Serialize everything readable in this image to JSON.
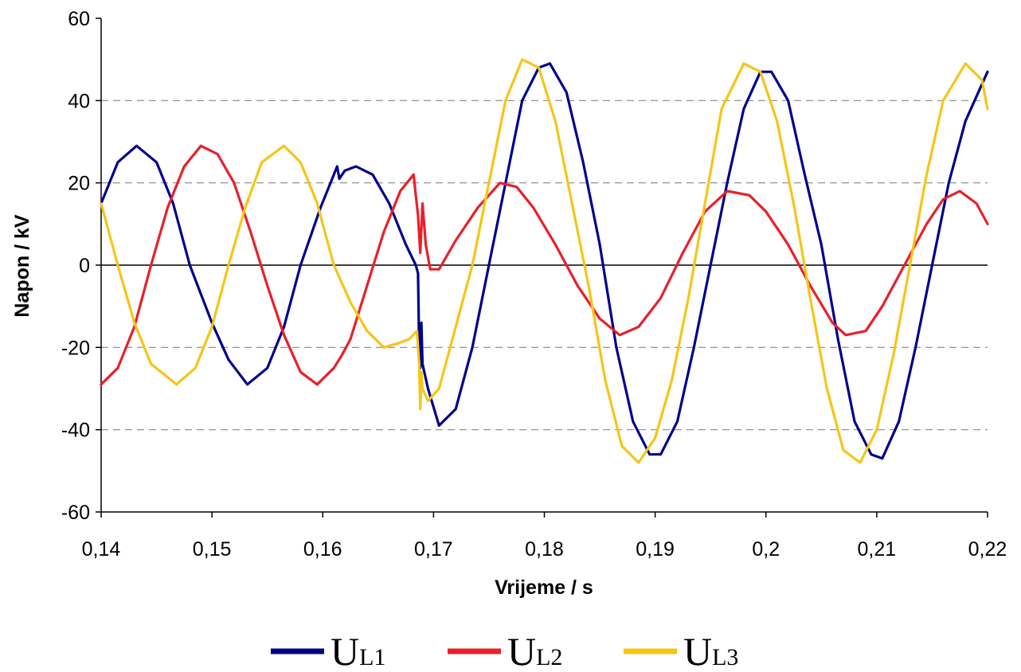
{
  "chart_data": {
    "type": "line",
    "title": "",
    "xlabel": "Vrijeme / s",
    "ylabel": "Napon / kV",
    "xlim": [
      0.14,
      0.22
    ],
    "ylim": [
      -60,
      60
    ],
    "x_ticks": [
      0.14,
      0.15,
      0.16,
      0.17,
      0.18,
      0.19,
      0.2,
      0.21,
      0.22
    ],
    "x_tick_labels": [
      "0,14",
      "0,15",
      "0,16",
      "0,17",
      "0,18",
      "0,19",
      "0,2",
      "0,21",
      "0,22"
    ],
    "y_ticks": [
      -60,
      -40,
      -20,
      0,
      20,
      40,
      60
    ],
    "y_tick_labels": [
      "-60",
      "-40",
      "-20",
      "0",
      "20",
      "40",
      "60"
    ],
    "grid": "horizontal dashed",
    "legend": "bottom",
    "series": [
      {
        "name": "U",
        "name_sub": "L1",
        "color": "#00008B",
        "points": [
          [
            0.14,
            15
          ],
          [
            0.1415,
            25
          ],
          [
            0.1432,
            29
          ],
          [
            0.145,
            25
          ],
          [
            0.1465,
            15
          ],
          [
            0.148,
            0
          ],
          [
            0.15,
            -14
          ],
          [
            0.1515,
            -23
          ],
          [
            0.1532,
            -29
          ],
          [
            0.155,
            -25
          ],
          [
            0.1565,
            -15
          ],
          [
            0.158,
            0
          ],
          [
            0.1598,
            14
          ],
          [
            0.161,
            22
          ],
          [
            0.1613,
            24
          ],
          [
            0.1615,
            21
          ],
          [
            0.162,
            23
          ],
          [
            0.163,
            24
          ],
          [
            0.1645,
            22
          ],
          [
            0.166,
            15
          ],
          [
            0.1675,
            5
          ],
          [
            0.1684,
            0
          ],
          [
            0.1686,
            -2
          ],
          [
            0.1687,
            -20
          ],
          [
            0.1688,
            -25
          ],
          [
            0.1689,
            -14
          ],
          [
            0.169,
            -24
          ],
          [
            0.1695,
            -30
          ],
          [
            0.1705,
            -39
          ],
          [
            0.172,
            -35
          ],
          [
            0.1735,
            -20
          ],
          [
            0.175,
            0
          ],
          [
            0.1765,
            20
          ],
          [
            0.178,
            40
          ],
          [
            0.1795,
            48
          ],
          [
            0.1805,
            49
          ],
          [
            0.182,
            42
          ],
          [
            0.1835,
            25
          ],
          [
            0.185,
            5
          ],
          [
            0.1865,
            -20
          ],
          [
            0.188,
            -38
          ],
          [
            0.1895,
            -46
          ],
          [
            0.1905,
            -46
          ],
          [
            0.192,
            -38
          ],
          [
            0.1935,
            -20
          ],
          [
            0.195,
            0
          ],
          [
            0.1965,
            20
          ],
          [
            0.198,
            38
          ],
          [
            0.1995,
            47
          ],
          [
            0.2005,
            47
          ],
          [
            0.202,
            40
          ],
          [
            0.2035,
            22
          ],
          [
            0.205,
            5
          ],
          [
            0.2065,
            -18
          ],
          [
            0.208,
            -38
          ],
          [
            0.2095,
            -46
          ],
          [
            0.2105,
            -47
          ],
          [
            0.212,
            -38
          ],
          [
            0.2135,
            -20
          ],
          [
            0.215,
            0
          ],
          [
            0.2165,
            20
          ],
          [
            0.218,
            35
          ],
          [
            0.2195,
            44
          ],
          [
            0.22,
            47
          ]
        ]
      },
      {
        "name": "U",
        "name_sub": "L2",
        "color": "#E8202A",
        "points": [
          [
            0.14,
            -29
          ],
          [
            0.1415,
            -25
          ],
          [
            0.143,
            -15
          ],
          [
            0.1445,
            0
          ],
          [
            0.146,
            14
          ],
          [
            0.1475,
            24
          ],
          [
            0.149,
            29
          ],
          [
            0.1505,
            27
          ],
          [
            0.152,
            20
          ],
          [
            0.1535,
            8
          ],
          [
            0.155,
            -5
          ],
          [
            0.1565,
            -17
          ],
          [
            0.158,
            -26
          ],
          [
            0.1595,
            -29
          ],
          [
            0.161,
            -25
          ],
          [
            0.1617,
            -22
          ],
          [
            0.1625,
            -18
          ],
          [
            0.164,
            -5
          ],
          [
            0.1655,
            8
          ],
          [
            0.167,
            18
          ],
          [
            0.1682,
            22
          ],
          [
            0.1684,
            17
          ],
          [
            0.1686,
            12
          ],
          [
            0.1688,
            3
          ],
          [
            0.169,
            15
          ],
          [
            0.1693,
            5
          ],
          [
            0.1697,
            -1
          ],
          [
            0.1705,
            -1
          ],
          [
            0.172,
            6
          ],
          [
            0.174,
            14
          ],
          [
            0.176,
            20
          ],
          [
            0.1775,
            19
          ],
          [
            0.179,
            14
          ],
          [
            0.181,
            5
          ],
          [
            0.183,
            -5
          ],
          [
            0.185,
            -13
          ],
          [
            0.1868,
            -17
          ],
          [
            0.1885,
            -15
          ],
          [
            0.1905,
            -8
          ],
          [
            0.1925,
            3
          ],
          [
            0.1945,
            13
          ],
          [
            0.1965,
            18
          ],
          [
            0.1985,
            17
          ],
          [
            0.2,
            13
          ],
          [
            0.202,
            5
          ],
          [
            0.204,
            -5
          ],
          [
            0.206,
            -14
          ],
          [
            0.2072,
            -17
          ],
          [
            0.209,
            -16
          ],
          [
            0.2105,
            -10
          ],
          [
            0.2125,
            0
          ],
          [
            0.2145,
            10
          ],
          [
            0.216,
            16
          ],
          [
            0.2175,
            18
          ],
          [
            0.219,
            15
          ],
          [
            0.22,
            10
          ]
        ]
      },
      {
        "name": "U",
        "name_sub": "L3",
        "color": "#F5C518",
        "points": [
          [
            0.14,
            15
          ],
          [
            0.1415,
            0
          ],
          [
            0.143,
            -14
          ],
          [
            0.1445,
            -24
          ],
          [
            0.1468,
            -29
          ],
          [
            0.1485,
            -25
          ],
          [
            0.15,
            -15
          ],
          [
            0.1515,
            0
          ],
          [
            0.153,
            14
          ],
          [
            0.1545,
            25
          ],
          [
            0.1565,
            29
          ],
          [
            0.158,
            25
          ],
          [
            0.1595,
            15
          ],
          [
            0.161,
            0
          ],
          [
            0.1625,
            -9
          ],
          [
            0.164,
            -16
          ],
          [
            0.1655,
            -20
          ],
          [
            0.1668,
            -19
          ],
          [
            0.1678,
            -18
          ],
          [
            0.1685,
            -16
          ],
          [
            0.1687,
            -24
          ],
          [
            0.1688,
            -35
          ],
          [
            0.1689,
            -26
          ],
          [
            0.169,
            -30
          ],
          [
            0.1695,
            -33
          ],
          [
            0.1705,
            -30
          ],
          [
            0.172,
            -15
          ],
          [
            0.1735,
            0
          ],
          [
            0.175,
            20
          ],
          [
            0.1765,
            40
          ],
          [
            0.178,
            50
          ],
          [
            0.1795,
            48
          ],
          [
            0.181,
            35
          ],
          [
            0.1825,
            15
          ],
          [
            0.184,
            -5
          ],
          [
            0.1855,
            -28
          ],
          [
            0.187,
            -44
          ],
          [
            0.1885,
            -48
          ],
          [
            0.19,
            -42
          ],
          [
            0.1915,
            -28
          ],
          [
            0.193,
            -8
          ],
          [
            0.1945,
            15
          ],
          [
            0.196,
            38
          ],
          [
            0.198,
            49
          ],
          [
            0.1995,
            47
          ],
          [
            0.201,
            35
          ],
          [
            0.2025,
            15
          ],
          [
            0.204,
            -8
          ],
          [
            0.2055,
            -30
          ],
          [
            0.207,
            -45
          ],
          [
            0.2085,
            -48
          ],
          [
            0.21,
            -40
          ],
          [
            0.2115,
            -22
          ],
          [
            0.213,
            0
          ],
          [
            0.2145,
            22
          ],
          [
            0.216,
            40
          ],
          [
            0.218,
            49
          ],
          [
            0.2195,
            45
          ],
          [
            0.22,
            38
          ]
        ]
      }
    ]
  }
}
